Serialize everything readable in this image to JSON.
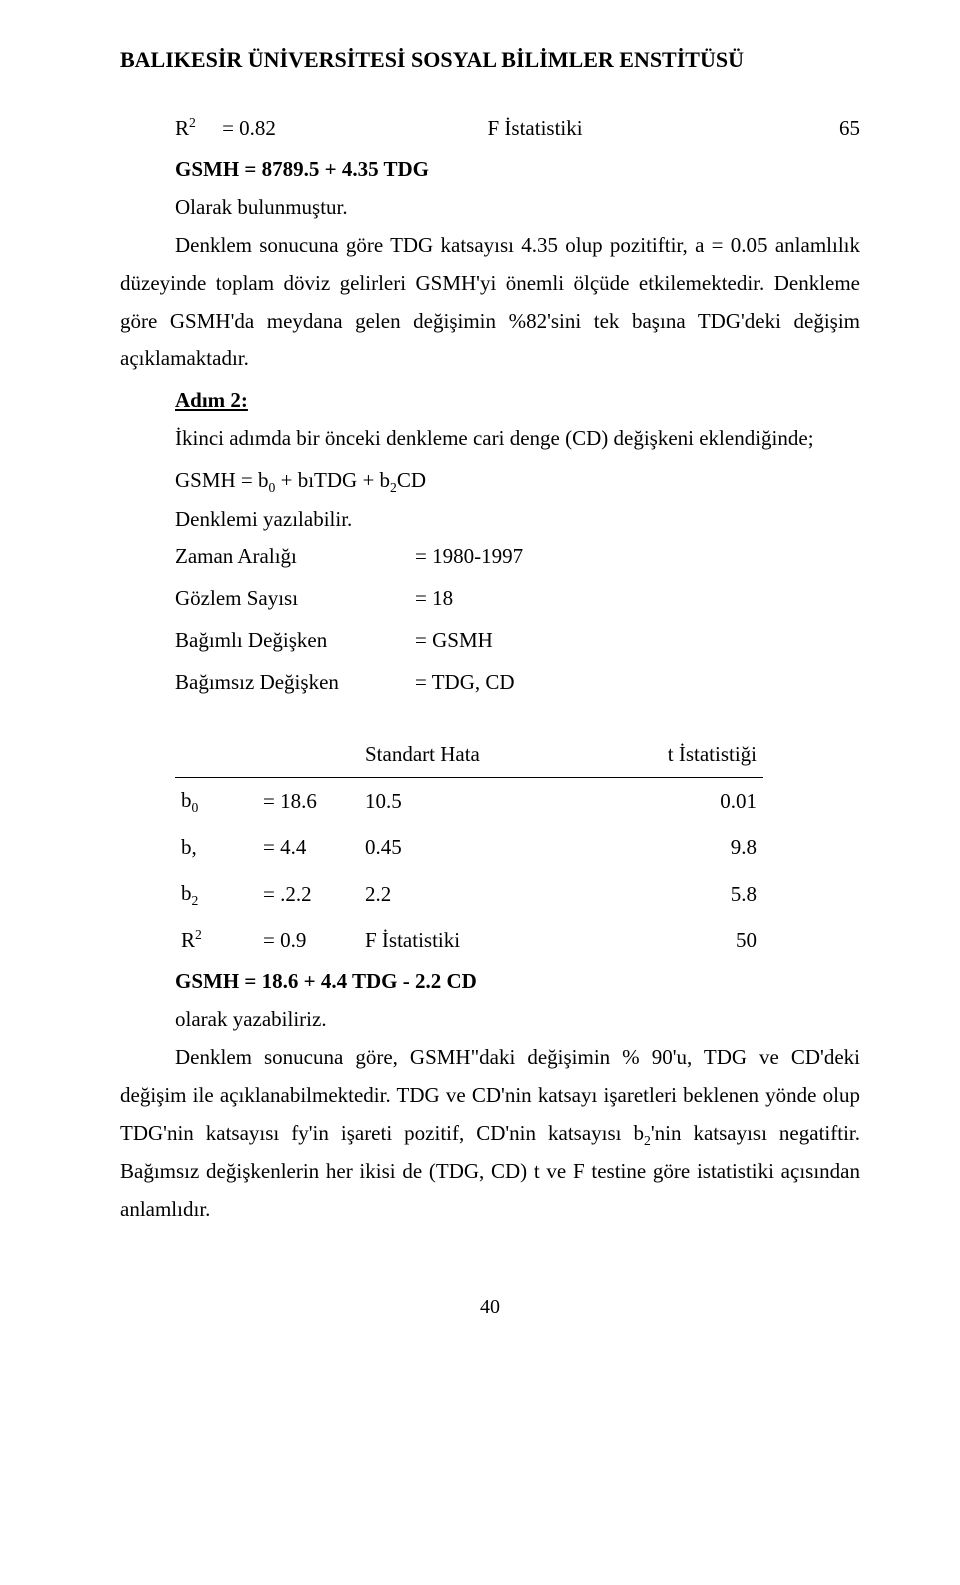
{
  "header": "BALIKESİR ÜNİVERSİTESİ SOSYAL BİLİMLER ENSTİTÜSÜ",
  "block1": {
    "r_label": "R",
    "r_eq": "= 0.82",
    "f_label": "F İstatistiki",
    "f_val": "65",
    "eq_line": "GSMH = 8789.5 + 4.35 TDG",
    "found_as": "Olarak bulunmuştur.",
    "p1": "Denklem sonucuna göre TDG katsayısı 4.35 olup pozitiftir, a = 0.05 anlamlılık düzeyinde toplam döviz gelirleri GSMH'yi önemli ölçüde etkilemektedir. Denkleme göre GSMH'da meydana gelen değişimin %82'sini tek başına TDG'deki değişim açıklamaktadır."
  },
  "step2": {
    "title": "Adım 2:",
    "p1_a": "İkinci adımda bir önceki denkleme cari denge (CD) değişkeni eklendiğinde;",
    "eq": "GSMH = b",
    "eq_sub0": "0",
    "eq_mid": " + bıTDG + b",
    "eq_sub2": "2",
    "eq_tail": "CD",
    "written": "Denklemi yazılabilir."
  },
  "kv": {
    "time_k": "Zaman Aralığı",
    "time_v": "= 1980-1997",
    "obs_k": "Gözlem Sayısı",
    "obs_v": "= 18",
    "dep_k": "Bağımlı Değişken",
    "dep_v": "= GSMH",
    "ind_k": "Bağımsız Değişken",
    "ind_v": "= TDG, CD"
  },
  "stats": {
    "h_se": "Standart Hata",
    "h_t": "t İstatistiği",
    "rows": [
      {
        "sym": "b",
        "sub": "0",
        "eq": "= 18.6",
        "se": "10.5",
        "t": "0.01"
      },
      {
        "sym": "b,",
        "sub": "",
        "eq": "= 4.4",
        "se": "0.45",
        "t": "9.8"
      },
      {
        "sym": "b",
        "sub": "2",
        "eq": "= .2.2",
        "se": "2.2",
        "t": "5.8"
      },
      {
        "sym": "R",
        "sup": "2",
        "eq": "= 0.9",
        "se": "F İstatistiki",
        "t": "50"
      }
    ],
    "eq_line": "GSMH = 18.6 + 4.4 TDG - 2.2 CD",
    "writable": "olarak yazabiliriz."
  },
  "concl": {
    "p1_a": "Denklem sonucuna göre, GSMH\"daki değişimin % 90'u, TDG ve CD'deki değişim ile açıklanabilmektedir. TDG ve CD'nin katsayı işaretleri beklenen yönde olup TDG'nin katsayısı fy'in işareti pozitif, CD'nin katsayısı b",
    "p1_sub": "2",
    "p1_b": "'nin katsayısı negatiftir. Bağımsız değişkenlerin her ikisi de (TDG, CD) t ve F testine göre istatistiki açısından anlamlıdır."
  },
  "pagenum": "40"
}
